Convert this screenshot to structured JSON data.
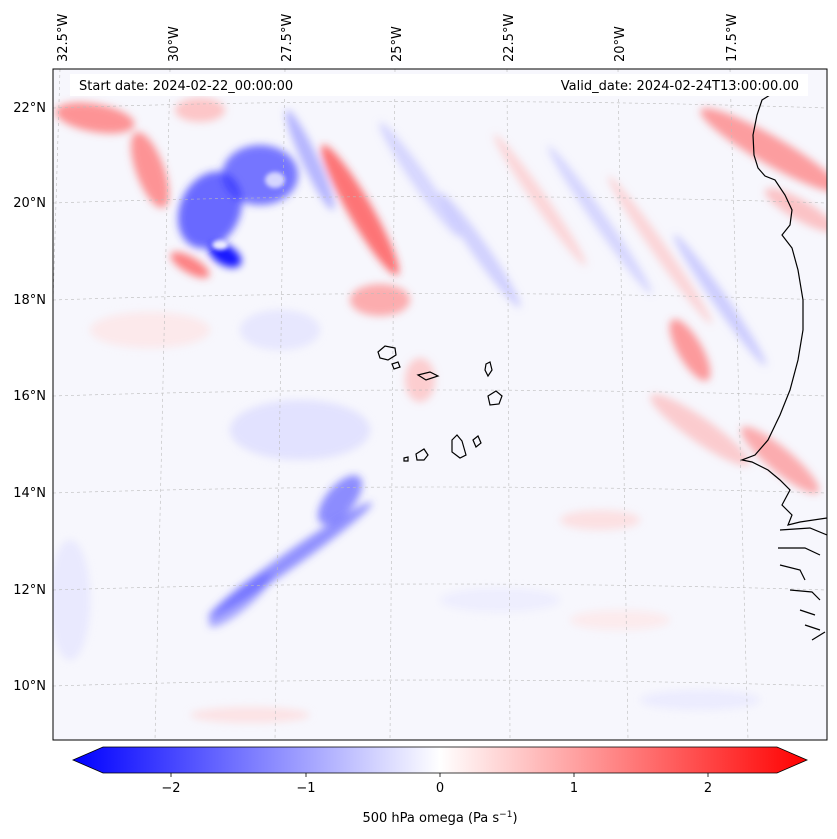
{
  "header": {
    "start_date": "Start date: 2024-02-22_00:00:00",
    "valid_date": "Valid_date: 2024-02-24T13:00:00.00"
  },
  "map": {
    "lon_labels": [
      "32.5°W",
      "30°W",
      "27.5°W",
      "25°W",
      "22.5°W",
      "20°W",
      "17.5°W"
    ],
    "lat_labels": [
      "22°N",
      "20°N",
      "18°N",
      "16°N",
      "14°N",
      "12°N",
      "10°N"
    ],
    "field_colors": {
      "negative": "#0000ff",
      "zero": "#ffffff",
      "positive": "#ff0000"
    }
  },
  "colorbar": {
    "ticks": [
      "−2",
      "−1",
      "0",
      "1",
      "2"
    ],
    "label_prefix": "500 hPa omega (Pa s",
    "label_exponent": "−1",
    "label_suffix": ")"
  }
}
